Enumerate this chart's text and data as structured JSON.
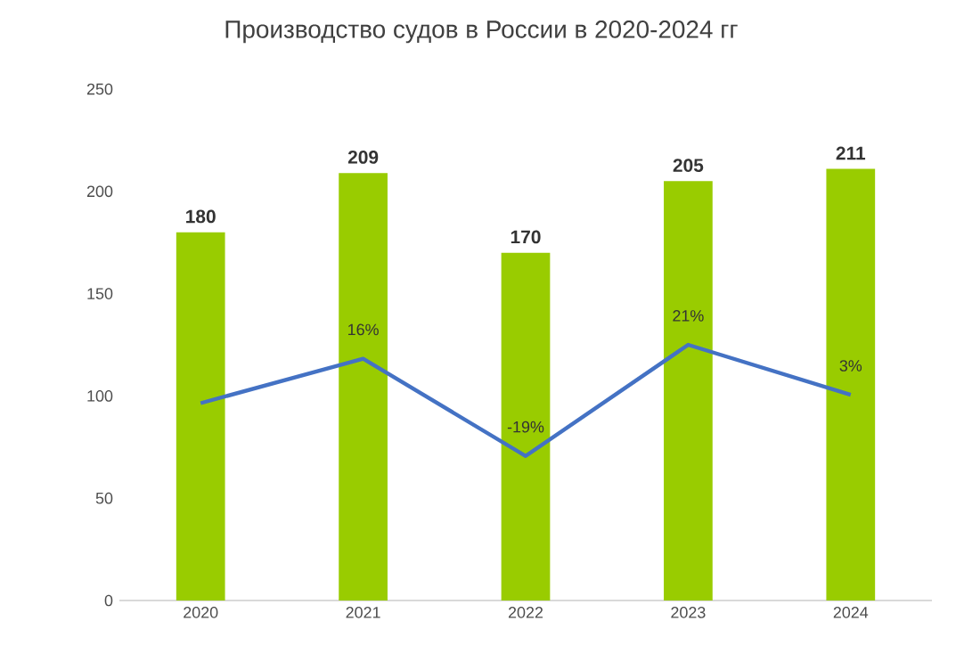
{
  "chart_data": {
    "type": "bar",
    "title": "Производство судов в России в 2020-2024 гг",
    "categories": [
      "2020",
      "2021",
      "2022",
      "2023",
      "2024"
    ],
    "series": [
      {
        "color": "#99cc00",
        "values": [
          180,
          209,
          170,
          205,
          211
        ],
        "value_labels": [
          "180",
          "209",
          "170",
          "205",
          "211"
        ]
      },
      {
        "type": "line",
        "axis": "y2",
        "color": "#4472c4",
        "marker": "none",
        "values": [
          0,
          16,
          -19,
          21,
          3
        ],
        "value_labels": [
          null,
          "16%",
          "-19%",
          "21%",
          "3%"
        ]
      }
    ],
    "ylim": [
      0,
      250
    ],
    "yticks": [
      0,
      50,
      100,
      150,
      200,
      250
    ]
  }
}
